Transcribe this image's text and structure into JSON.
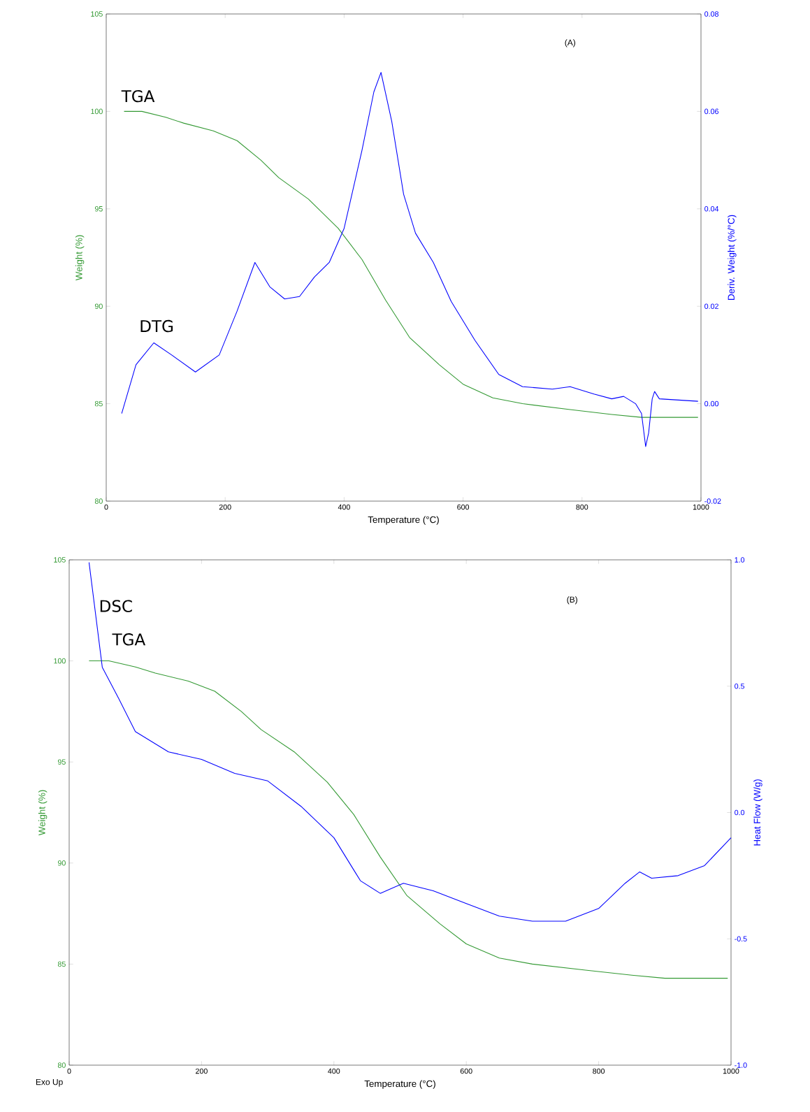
{
  "chart_data": [
    {
      "type": "line",
      "xlabel": "Temperature (°C)",
      "ylabel": "Weight (%)",
      "y2label": "Deriv. Weight (%/°C)",
      "xlim": [
        0,
        1000
      ],
      "xticks": [
        0,
        200,
        400,
        600,
        800,
        1000
      ],
      "ylim": [
        80,
        105
      ],
      "yticks": [
        80,
        85,
        90,
        95,
        100,
        105
      ],
      "y2lim": [
        -0.02,
        0.08
      ],
      "y2ticks": [
        {
          "value": -0.02,
          "label": "-0.02"
        },
        {
          "value": 0,
          "label": "0.00"
        },
        {
          "value": 0.02,
          "label": "0.02"
        },
        {
          "value": 0.04,
          "label": "0.04"
        },
        {
          "value": 0.06,
          "label": "0.06"
        },
        {
          "value": 0.08,
          "label": "0.08"
        }
      ],
      "series": [
        {
          "name": "TGA",
          "color": "#339933",
          "axis": "y",
          "x": [
            30,
            60,
            100,
            130,
            180,
            220,
            260,
            290,
            340,
            390,
            430,
            470,
            510,
            560,
            600,
            650,
            700,
            780,
            850,
            900,
            995
          ],
          "values": [
            100.0,
            100.0,
            99.7,
            99.4,
            99.0,
            98.5,
            97.5,
            96.6,
            95.5,
            94.0,
            92.4,
            90.3,
            88.4,
            87.0,
            86.0,
            85.3,
            85.0,
            84.7,
            84.45,
            84.3,
            84.3
          ]
        },
        {
          "name": "DTG",
          "color": "#0000ff",
          "axis": "y2",
          "x": [
            26,
            50,
            80,
            110,
            150,
            190,
            220,
            250,
            275,
            300,
            325,
            350,
            375,
            400,
            430,
            450,
            462,
            480,
            500,
            520,
            550,
            580,
            620,
            660,
            700,
            750,
            780,
            820,
            850,
            870,
            890,
            900,
            907,
            912,
            918,
            922,
            930,
            995
          ],
          "values": [
            -0.002,
            0.008,
            0.0125,
            0.01,
            0.0065,
            0.01,
            0.019,
            0.029,
            0.024,
            0.0215,
            0.022,
            0.026,
            0.029,
            0.036,
            0.052,
            0.064,
            0.068,
            0.058,
            0.043,
            0.035,
            0.029,
            0.021,
            0.013,
            0.006,
            0.0035,
            0.003,
            0.0035,
            0.002,
            0.001,
            0.0015,
            0.0,
            -0.002,
            -0.0088,
            -0.006,
            0.001,
            0.0025,
            0.001,
            0.0005
          ]
        }
      ],
      "annotations": [
        "(A)"
      ]
    },
    {
      "type": "line",
      "xlabel": "Temperature (°C)",
      "ylabel": "Weight (%)",
      "y2label": "Heat Flow (W/g)",
      "xlim": [
        0,
        1000
      ],
      "xticks": [
        0,
        200,
        400,
        600,
        800,
        1000
      ],
      "ylim": [
        80,
        105
      ],
      "yticks": [
        80,
        85,
        90,
        95,
        100,
        105
      ],
      "y2lim": [
        -1.0,
        1.0
      ],
      "y2ticks": [
        {
          "value": -1,
          "label": "-1.0"
        },
        {
          "value": -0.5,
          "label": "-0.5"
        },
        {
          "value": 0,
          "label": "0.0"
        },
        {
          "value": 0.5,
          "label": "0.5"
        },
        {
          "value": 1,
          "label": "1.0"
        }
      ],
      "series": [
        {
          "name": "DSC",
          "color": "#0000ff",
          "axis": "y2",
          "x": [
            30,
            50,
            75,
            100,
            150,
            200,
            250,
            300,
            350,
            400,
            440,
            470,
            505,
            550,
            600,
            650,
            700,
            750,
            800,
            840,
            862,
            880,
            920,
            960,
            1000
          ],
          "values": [
            0.99,
            0.575,
            0.45,
            0.32,
            0.24,
            0.21,
            0.155,
            0.125,
            0.025,
            -0.1,
            -0.27,
            -0.32,
            -0.28,
            -0.31,
            -0.36,
            -0.41,
            -0.43,
            -0.43,
            -0.38,
            -0.28,
            -0.235,
            -0.26,
            -0.25,
            -0.21,
            -0.1
          ]
        },
        {
          "name": "TGA",
          "color": "#339933",
          "axis": "y",
          "x": [
            30,
            60,
            100,
            130,
            180,
            220,
            260,
            290,
            340,
            390,
            430,
            470,
            510,
            560,
            600,
            650,
            700,
            780,
            850,
            900,
            995
          ],
          "values": [
            100.0,
            100.0,
            99.7,
            99.4,
            99.0,
            98.5,
            97.5,
            96.6,
            95.5,
            94.0,
            92.4,
            90.3,
            88.4,
            87.0,
            86.0,
            85.3,
            85.0,
            84.7,
            84.45,
            84.3,
            84.3
          ]
        }
      ],
      "annotations": [
        "(B)",
        "Exo Up"
      ]
    }
  ]
}
